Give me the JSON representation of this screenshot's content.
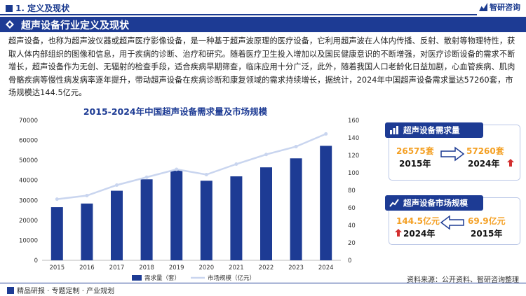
{
  "header": {
    "section_title": "1. 定义及现状",
    "logo_text": "智研咨询"
  },
  "banner": {
    "title": "超声设备行业定义及现状"
  },
  "body_text": "超声设备，也称为超声波仪器或超声医疗影像设备，是一种基于超声波原理的医疗设备，它利用超声波在人体内传播、反射、散射等物理特性，获取人体内部组织的图像和信息，用于疾病的诊断、治疗和研究。随着医疗卫生投入增加以及国民健康意识的不断增强，对医疗诊断设备的需求不断增长，超声设备作为无创、无辐射的检查手段，适合疾病早期筛查，临床应用十分广泛，此外，随着我国人口老龄化日益加剧，心血管疾病、肌肉骨骼疾病等慢性病发病率逐年提升，带动超声设备在疾病诊断和康复领域的需求持续增长，据统计，2024年中国超声设备需求量达57260套，市场规模达144.5亿元。",
  "chart_data": {
    "type": "bar",
    "title": "2015-2024年中国超声设备需求量及市场规模",
    "categories": [
      "2015",
      "2016",
      "2017",
      "2018",
      "2019",
      "2020",
      "2021",
      "2022",
      "2023",
      "2024"
    ],
    "series": [
      {
        "name": "需求量（套）",
        "type": "bar",
        "axis": "left",
        "color": "#1d3b94",
        "values": [
          26575,
          28400,
          34800,
          40500,
          45000,
          39800,
          42000,
          46500,
          51000,
          57260
        ]
      },
      {
        "name": "市场规模（亿元）",
        "type": "line",
        "axis": "right",
        "color": "#c9d5ef",
        "values": [
          69.9,
          74,
          86,
          95,
          104,
          98,
          110,
          121,
          130,
          144.5
        ]
      }
    ],
    "y_left": {
      "min": 0,
      "max": 70000,
      "ticks": [
        "0",
        "10000",
        "20000",
        "30000",
        "40000",
        "50000",
        "60000",
        "70000"
      ]
    },
    "y_right": {
      "min": 0,
      "max": 160,
      "ticks": [
        "0",
        "20",
        "40",
        "60",
        "80",
        "100",
        "120",
        "140",
        "160"
      ]
    },
    "grid": false,
    "legend_position": "bottom"
  },
  "cards": {
    "demand": {
      "title": "超声设备需求量",
      "from_value": "26575套",
      "from_year": "2015年",
      "to_value": "57260套",
      "to_year": "2024年",
      "up_color": "#d32f2f"
    },
    "market": {
      "title": "超声设备市场规模",
      "new_value": "144.5亿元",
      "new_year": "2024年",
      "old_value": "69.9亿元",
      "old_year": "2015年",
      "up_color": "#d32f2f"
    }
  },
  "footer": {
    "left_text": "精品研报 · 专题定制 · 产业规划",
    "source_text": "资料来源：公开资料、智研咨询整理"
  }
}
